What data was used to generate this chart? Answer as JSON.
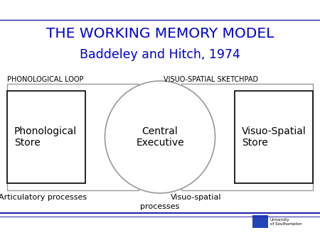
{
  "title_line1": "THE WORKING MEMORY MODEL",
  "title_line2": "Baddeley and Hitch, 1974",
  "title_color": "#0000cc",
  "background_color": "#ffffff",
  "label_left": "PHONOLOGICAL LOOP",
  "label_right": "VISUO-SPATIAL SKETCHPAD",
  "label_color": "#000000",
  "box_left_text": "Phonological\nStore",
  "box_right_text": "Visuo-Spatial\nStore",
  "circle_text": "Central\nExecutive",
  "bottom_left_text": "Articulatory processes",
  "bottom_right_text1": "Visuo-spatial",
  "bottom_right_text2": "processes",
  "line_color": "#2222aa",
  "box_edge_color": "#000000",
  "outer_rect_color": "#999999",
  "ellipse_color": "#999999"
}
